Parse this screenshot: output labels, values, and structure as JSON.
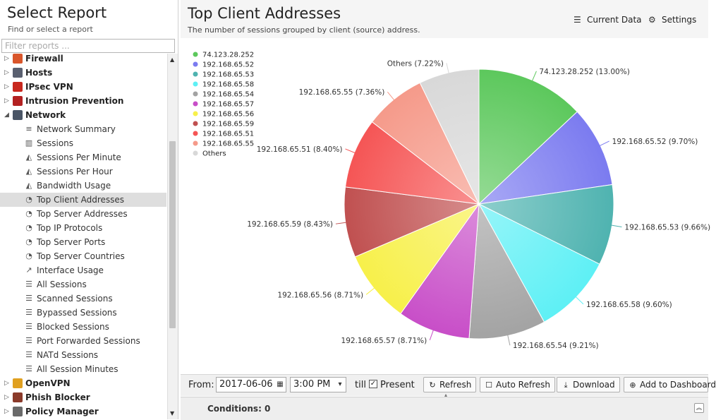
{
  "left_panel": {
    "title": "Select Report",
    "subtitle": "Find or select a report",
    "filter_placeholder": "Filter reports ..."
  },
  "tree": [
    {
      "type": "cat",
      "label": "Firewall",
      "icon": "firewall-icon",
      "color": "#d9562b"
    },
    {
      "type": "cat",
      "label": "Hosts",
      "icon": "hosts-icon",
      "color": "#5a6070"
    },
    {
      "type": "cat",
      "label": "IPsec VPN",
      "icon": "ipsec-vpn-icon",
      "color": "#c8281e"
    },
    {
      "type": "cat",
      "label": "Intrusion Prevention",
      "icon": "intrusion-prevention-icon",
      "color": "#b32121"
    },
    {
      "type": "cat",
      "label": "Network",
      "icon": "network-icon",
      "color": "#4a5566",
      "expanded": true
    },
    {
      "type": "leaf",
      "label": "Network Summary",
      "icon": "list-icon",
      "glyph": "≡"
    },
    {
      "type": "leaf",
      "label": "Sessions",
      "icon": "bar-chart-icon",
      "glyph": "▥"
    },
    {
      "type": "leaf",
      "label": "Sessions Per Minute",
      "icon": "area-chart-icon",
      "glyph": "◭"
    },
    {
      "type": "leaf",
      "label": "Sessions Per Hour",
      "icon": "area-chart-icon",
      "glyph": "◭"
    },
    {
      "type": "leaf",
      "label": "Bandwidth Usage",
      "icon": "area-chart-icon",
      "glyph": "◭"
    },
    {
      "type": "leaf",
      "label": "Top Client Addresses",
      "icon": "pie-chart-icon",
      "glyph": "◔",
      "selected": true
    },
    {
      "type": "leaf",
      "label": "Top Server Addresses",
      "icon": "pie-chart-icon",
      "glyph": "◔"
    },
    {
      "type": "leaf",
      "label": "Top IP Protocols",
      "icon": "pie-chart-icon",
      "glyph": "◔"
    },
    {
      "type": "leaf",
      "label": "Top Server Ports",
      "icon": "pie-chart-icon",
      "glyph": "◔"
    },
    {
      "type": "leaf",
      "label": "Top Server Countries",
      "icon": "pie-chart-icon",
      "glyph": "◔"
    },
    {
      "type": "leaf",
      "label": "Interface Usage",
      "icon": "line-chart-icon",
      "glyph": "↗"
    },
    {
      "type": "leaf",
      "label": "All Sessions",
      "icon": "list-icon",
      "glyph": "☰"
    },
    {
      "type": "leaf",
      "label": "Scanned Sessions",
      "icon": "list-icon",
      "glyph": "☰"
    },
    {
      "type": "leaf",
      "label": "Bypassed Sessions",
      "icon": "list-icon",
      "glyph": "☰"
    },
    {
      "type": "leaf",
      "label": "Blocked Sessions",
      "icon": "list-icon",
      "glyph": "☰"
    },
    {
      "type": "leaf",
      "label": "Port Forwarded Sessions",
      "icon": "list-icon",
      "glyph": "☰"
    },
    {
      "type": "leaf",
      "label": "NATd Sessions",
      "icon": "list-icon",
      "glyph": "☰"
    },
    {
      "type": "leaf",
      "label": "All Session Minutes",
      "icon": "list-icon",
      "glyph": "☰"
    },
    {
      "type": "cat",
      "label": "OpenVPN",
      "icon": "openvpn-icon",
      "color": "#e0a020"
    },
    {
      "type": "cat",
      "label": "Phish Blocker",
      "icon": "phish-blocker-icon",
      "color": "#8a3a2a"
    },
    {
      "type": "cat",
      "label": "Policy Manager",
      "icon": "policy-manager-icon",
      "color": "#6a6a6a"
    }
  ],
  "report": {
    "title": "Top Client Addresses",
    "subtitle": "The number of sessions grouped by client (source) address.",
    "current_data_label": "Current Data",
    "settings_label": "Settings"
  },
  "chart_data": {
    "type": "pie",
    "title": "",
    "slices": [
      {
        "label": "74.123.28.252",
        "value": 13.0,
        "color": "#5cc85c",
        "display": "74.123.28.252 (13.00%)"
      },
      {
        "label": "192.168.65.52",
        "value": 9.7,
        "color": "#7b7bf0",
        "display": "192.168.65.52 (9.70%)"
      },
      {
        "label": "192.168.65.53",
        "value": 9.66,
        "color": "#4fb3b0",
        "display": "192.168.65.53 (9.66%)"
      },
      {
        "label": "192.168.65.58",
        "value": 9.6,
        "color": "#5ef0f5",
        "display": "192.168.65.58 (9.60%)"
      },
      {
        "label": "192.168.65.54",
        "value": 9.21,
        "color": "#a3a3a3",
        "display": "192.168.65.54 (9.21%)"
      },
      {
        "label": "192.168.65.57",
        "value": 8.71,
        "color": "#c84ec8",
        "display": "192.168.65.57 (8.71%)"
      },
      {
        "label": "192.168.65.56",
        "value": 8.71,
        "color": "#f7f04a",
        "display": "192.168.65.56 (8.71%)"
      },
      {
        "label": "192.168.65.59",
        "value": 8.43,
        "color": "#c05050",
        "display": "192.168.65.59 (8.43%)"
      },
      {
        "label": "192.168.65.51",
        "value": 8.4,
        "color": "#f55555",
        "display": "192.168.65.51 (8.40%)"
      },
      {
        "label": "192.168.65.55",
        "value": 7.36,
        "color": "#f59a8a",
        "display": "192.168.65.55 (7.36%)"
      },
      {
        "label": "Others",
        "value": 7.22,
        "color": "#d8d8d8",
        "display": "Others (7.22%)"
      }
    ],
    "legend_position": "top-left"
  },
  "toolbar": {
    "from_label": "From:",
    "date": "2017-06-06",
    "time": "3:00 PM",
    "till_label": "till",
    "present_checked": true,
    "present_label": "Present",
    "refresh_label": "Refresh",
    "auto_refresh_label": "Auto Refresh",
    "download_label": "Download",
    "add_dashboard_label": "Add to Dashboard"
  },
  "conditions": {
    "label": "Conditions: 0"
  }
}
